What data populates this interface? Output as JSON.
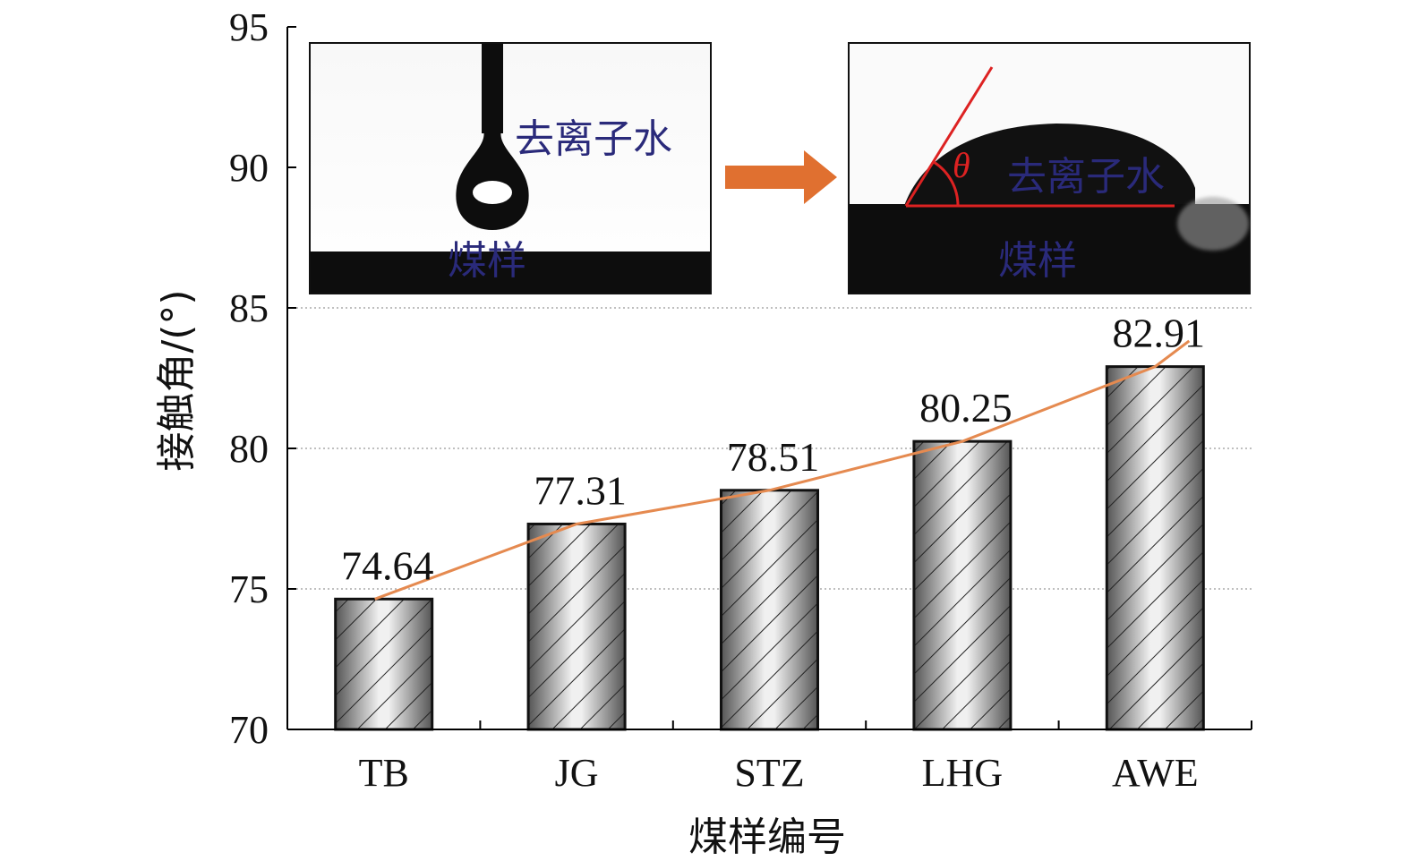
{
  "chart_data": {
    "type": "bar",
    "categories": [
      "TB",
      "JG",
      "STZ",
      "LHG",
      "AWE"
    ],
    "values": [
      74.64,
      77.31,
      78.51,
      80.25,
      82.91
    ],
    "data_labels": [
      "74.64",
      "77.31",
      "78.51",
      "80.25",
      "82.91"
    ],
    "xlabel": "煤样编号",
    "ylabel": "接触角/(°)",
    "ylim": [
      70,
      95
    ],
    "yticks": [
      70,
      75,
      80,
      85,
      90,
      95
    ],
    "grid": "horizontal dotted",
    "bar_pattern": "diagonal hatch",
    "trend_line": true,
    "trend_color": "#e58a50"
  },
  "insets": {
    "left": {
      "water_label": "去离子水",
      "sample_label": "煤样"
    },
    "right": {
      "water_label": "去离子水",
      "sample_label": "煤样",
      "angle_symbol": "θ"
    },
    "arrow_color": "#e07030",
    "label_color": "#2a2a7a",
    "angle_color": "#dd2222"
  }
}
